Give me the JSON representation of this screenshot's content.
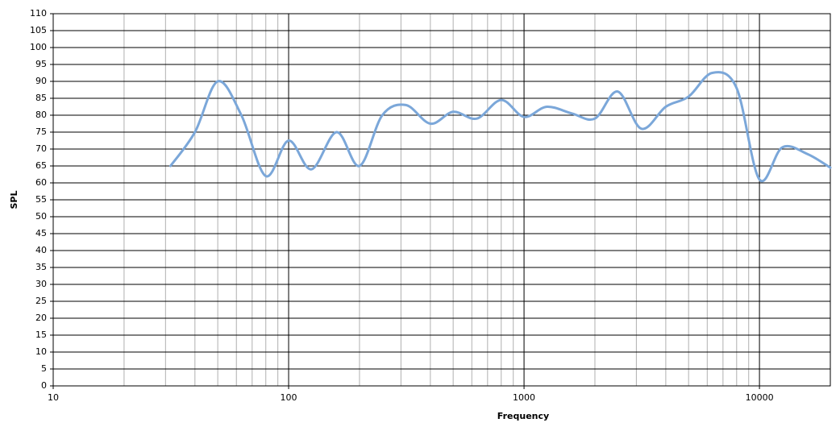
{
  "chart_data": {
    "type": "line",
    "x_label": "Frequency",
    "y_label": "SPL",
    "x_log": true,
    "grid": true,
    "xlim": [
      10,
      20000
    ],
    "xticks": [
      10,
      100,
      1000,
      10000
    ],
    "ylim": [
      0,
      110
    ],
    "yticks": [
      0,
      5,
      10,
      15,
      20,
      25,
      30,
      35,
      40,
      45,
      50,
      55,
      60,
      65,
      70,
      75,
      80,
      85,
      90,
      95,
      100,
      105,
      110
    ],
    "series": [
      {
        "color": "#7ba7d9",
        "x": [
          31.5,
          40,
          50,
          63,
          80,
          100,
          125,
          160,
          200,
          250,
          315,
          400,
          500,
          630,
          800,
          1000,
          1250,
          1600,
          2000,
          2500,
          3150,
          4000,
          5000,
          6300,
          8000,
          10000,
          12500,
          16000,
          20000
        ],
        "values": [
          65,
          75,
          90,
          80,
          62,
          72.5,
          64,
          75,
          65,
          80,
          83,
          77.5,
          81,
          79,
          84.5,
          79.5,
          82.5,
          80.5,
          79,
          87,
          76,
          82.5,
          85.5,
          92.5,
          88,
          61,
          70.5,
          68.5,
          64.5
        ]
      }
    ]
  }
}
